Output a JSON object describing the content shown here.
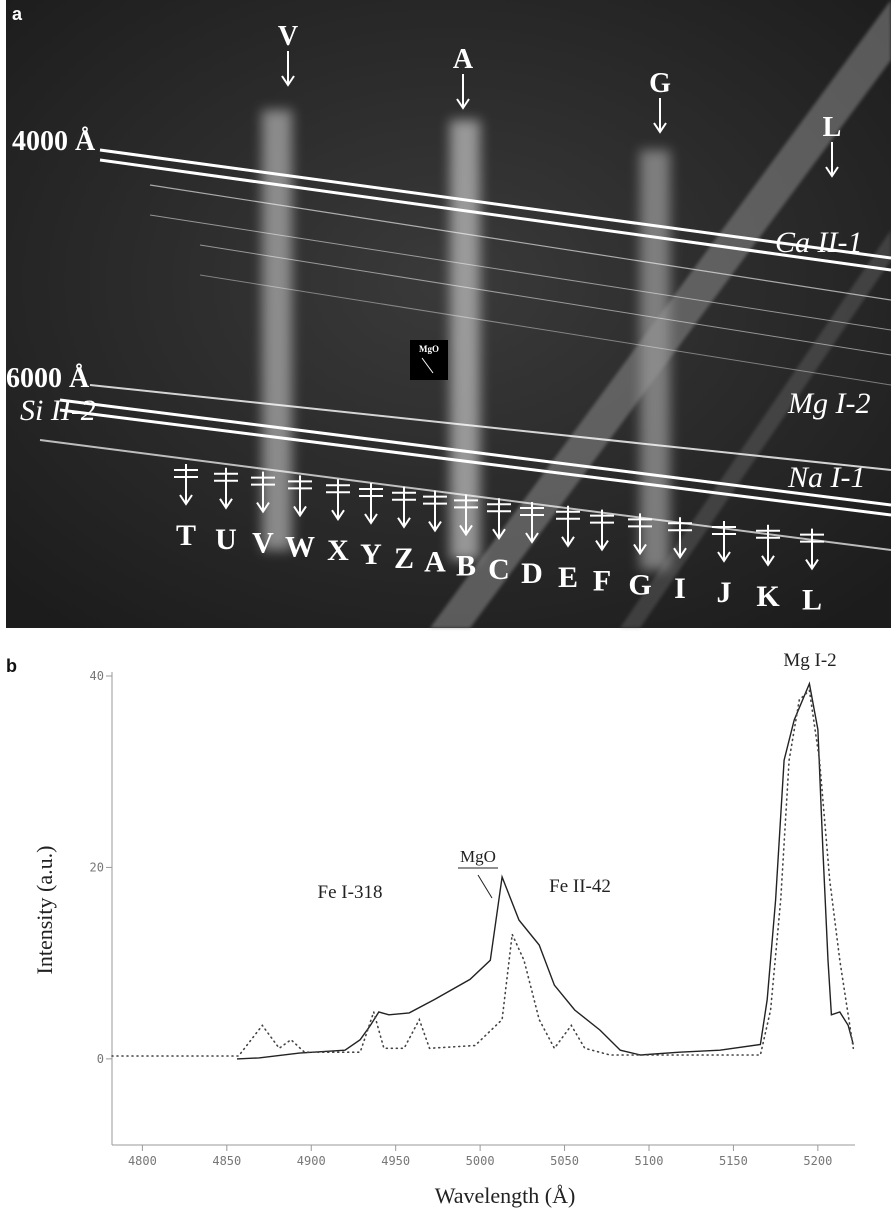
{
  "panel_a": {
    "label": "a",
    "top_markers": [
      "V",
      "A",
      "G",
      "L"
    ],
    "wavelength_marks": [
      "4000 Å",
      "6000 Å"
    ],
    "line_labels": [
      "Ca II-1",
      "Mg I-2",
      "Na I-1",
      "Si II-2"
    ],
    "inset_label": "MgO",
    "bottom_markers": [
      "T",
      "U",
      "V",
      "W",
      "X",
      "Y",
      "Z",
      "A",
      "B",
      "C",
      "D",
      "E",
      "F",
      "G",
      "I",
      "J",
      "K",
      "L"
    ]
  },
  "chart_data": {
    "type": "line",
    "panel_label": "b",
    "x_label": "Wavelength (Å)",
    "y_label": "Intensity (a.u.)",
    "annotations": [
      "Mg I-2",
      "MgO",
      "Fe I-318",
      "Fe II-42"
    ],
    "xlim": [
      4782,
      5222
    ],
    "xticks": [
      4800,
      4850,
      4900,
      4950,
      5000,
      5050,
      5100,
      5150,
      5200
    ],
    "ylim": [
      -9,
      40
    ],
    "yticks": [
      0,
      20,
      40
    ],
    "series": [
      {
        "color": "#222222",
        "style": "solid",
        "x": [
          4856,
          4869,
          4893,
          4920,
          4929,
          4935,
          4940,
          4946,
          4958,
          4973,
          4994,
          5006,
          5013,
          5023,
          5035,
          5044,
          5056,
          5071,
          5083,
          5095,
          5118,
          5142,
          5166,
          5170,
          5175,
          5180,
          5186,
          5195,
          5200,
          5203,
          5206,
          5208,
          5213,
          5218,
          5221
        ],
        "values": [
          0,
          0.1,
          0.6,
          0.9,
          2.0,
          3.5,
          4.9,
          4.6,
          4.8,
          6.2,
          8.3,
          10.3,
          19.0,
          14.5,
          11.9,
          7.7,
          5.1,
          3.0,
          0.9,
          0.4,
          0.7,
          0.9,
          1.5,
          6.2,
          16.6,
          31.2,
          35.4,
          39.2,
          34.4,
          21.8,
          10.3,
          4.6,
          4.9,
          3.5,
          1.5
        ]
      },
      {
        "color": "#444444",
        "style": "dotted",
        "x": [
          4782,
          4857,
          4871,
          4881,
          4888,
          4896,
          4929,
          4937,
          4943,
          4955,
          4964,
          4970,
          4997,
          5013,
          5019,
          5026,
          5035,
          5044,
          5054,
          5062,
          5077,
          5166,
          5172,
          5178,
          5183,
          5189,
          5195,
          5201,
          5207,
          5213,
          5221
        ],
        "values": [
          0.3,
          0.3,
          3.5,
          1.1,
          2.0,
          0.7,
          0.7,
          4.9,
          1.1,
          1.1,
          4.1,
          1.1,
          1.4,
          4.1,
          13.0,
          10.3,
          4.1,
          1.1,
          3.5,
          1.1,
          0.4,
          0.4,
          5.1,
          16.6,
          31.2,
          37.5,
          38.5,
          31.2,
          18.7,
          10.3,
          1.1
        ]
      }
    ]
  }
}
